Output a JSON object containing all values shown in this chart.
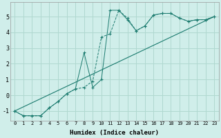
{
  "xlabel": "Humidex (Indice chaleur)",
  "bg_color": "#d0eeea",
  "grid_color": "#b0d8d0",
  "line_color": "#1a7a6e",
  "xlim": [
    -0.5,
    23.5
  ],
  "ylim": [
    -1.6,
    5.9
  ],
  "xticks": [
    0,
    1,
    2,
    3,
    4,
    5,
    6,
    7,
    8,
    9,
    10,
    11,
    12,
    13,
    14,
    15,
    16,
    17,
    18,
    19,
    20,
    21,
    22,
    23
  ],
  "yticks": [
    -1,
    0,
    1,
    2,
    3,
    4,
    5
  ],
  "line1_x": [
    0,
    1,
    2,
    3,
    4,
    5,
    6,
    7,
    8,
    9,
    10,
    11,
    12,
    13,
    14,
    15,
    16,
    17,
    18,
    19,
    20,
    21,
    22,
    23
  ],
  "line1_y": [
    -1.0,
    -1.3,
    -1.3,
    -1.3,
    -0.8,
    -0.4,
    0.1,
    0.4,
    0.5,
    0.9,
    3.7,
    3.9,
    5.4,
    4.9,
    4.1,
    4.4,
    5.1,
    5.2,
    5.2,
    4.9,
    4.7,
    4.8,
    4.8,
    5.0
  ],
  "line2_x": [
    0,
    1,
    2,
    3,
    4,
    5,
    6,
    7,
    8,
    9,
    10,
    11,
    12,
    13,
    14,
    15,
    16,
    17,
    18,
    19,
    20,
    21,
    22,
    23
  ],
  "line2_y": [
    -1.0,
    -1.3,
    -1.3,
    -1.3,
    -0.8,
    -0.4,
    0.1,
    0.4,
    2.7,
    0.5,
    1.0,
    5.4,
    5.4,
    4.8,
    4.1,
    4.4,
    5.1,
    5.2,
    5.2,
    4.9,
    4.7,
    4.8,
    4.8,
    5.0
  ],
  "line3_x": [
    0,
    23
  ],
  "line3_y": [
    -1.0,
    5.0
  ],
  "xlabel_fontsize": 6.5,
  "tick_fontsize_x": 5.0,
  "tick_fontsize_y": 6.0
}
